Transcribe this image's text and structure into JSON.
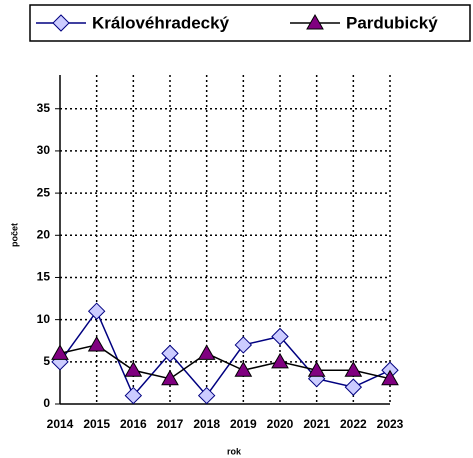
{
  "chart_data": {
    "type": "line",
    "categories": [
      "2014",
      "2015",
      "2016",
      "2017",
      "2018",
      "2019",
      "2020",
      "2021",
      "2022",
      "2023"
    ],
    "series": [
      {
        "name": "Královéhradecký",
        "color": "#000080",
        "marker_color": "#ccccff",
        "marker": "diamond",
        "values": [
          5,
          11,
          1,
          6,
          1,
          7,
          8,
          3,
          2,
          4
        ]
      },
      {
        "name": "Pardubický",
        "color": "#000000",
        "marker_color": "#800080",
        "marker": "triangle",
        "values": [
          6,
          7,
          4,
          3,
          6,
          4,
          5,
          4,
          4,
          3
        ]
      }
    ],
    "xlabel": "rok",
    "ylabel": "počet",
    "ylim": [
      0,
      39
    ],
    "yticks": [
      0,
      5,
      10,
      15,
      20,
      25,
      30,
      35
    ],
    "grid": true,
    "legend": "top"
  }
}
